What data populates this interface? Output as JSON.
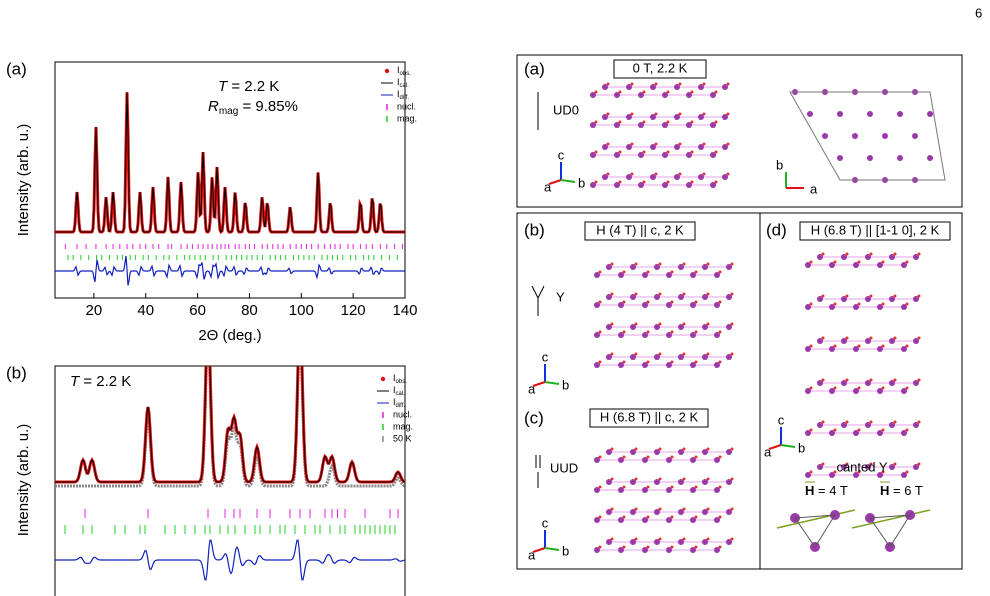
{
  "page_number": "6",
  "panel_a": {
    "label": "(a)",
    "temp_symbol": "T",
    "temp_value": " = 2.2 K",
    "r_symbol": "R",
    "r_sub": "mag",
    "r_value": " = 9.85%",
    "y_label": "Intensity (arb. u.)",
    "x_label": "2Θ (deg.)",
    "xlim": [
      5,
      140
    ],
    "xticks": [
      20,
      40,
      60,
      80,
      100,
      120,
      140
    ],
    "legend": [
      {
        "symbol": "I",
        "sub": "obs."
      },
      {
        "symbol": "I",
        "sub": "cal."
      },
      {
        "symbol": "I",
        "sub": "diff."
      },
      {
        "text": "nucl."
      },
      {
        "text": "mag."
      }
    ],
    "peaks": [
      [
        13.5,
        40
      ],
      [
        20.8,
        105
      ],
      [
        24.7,
        35
      ],
      [
        27.4,
        40
      ],
      [
        32.8,
        140
      ],
      [
        37.8,
        40
      ],
      [
        42.8,
        45
      ],
      [
        48.6,
        55
      ],
      [
        53.6,
        50
      ],
      [
        60.2,
        60
      ],
      [
        62.1,
        80
      ],
      [
        65.6,
        55
      ],
      [
        67.5,
        65
      ],
      [
        70.6,
        45
      ],
      [
        74.5,
        40
      ],
      [
        78.4,
        30
      ],
      [
        84.9,
        35
      ],
      [
        86.9,
        30
      ],
      [
        95.7,
        25
      ],
      [
        106.5,
        60
      ],
      [
        111.2,
        30
      ],
      [
        122.8,
        30
      ],
      [
        127.4,
        35
      ],
      [
        130.5,
        30
      ]
    ],
    "nucl_ticks": [
      9,
      13.5,
      17,
      20.8,
      24.7,
      27.4,
      30,
      32.8,
      35,
      37.8,
      40,
      42.8,
      45,
      48.6,
      50,
      53.6,
      56,
      58,
      60.2,
      62.1,
      64,
      65.6,
      67.5,
      69,
      70.6,
      72,
      74.5,
      76,
      78.4,
      80,
      82,
      84.9,
      86.9,
      89,
      91,
      93,
      95.7,
      98,
      100,
      102,
      104,
      106.5,
      109,
      111.2,
      113,
      115,
      118,
      120,
      122.8,
      125,
      127.4,
      130.5,
      133,
      136,
      139
    ],
    "mag_ticks": [
      10,
      12,
      15,
      18,
      21,
      23,
      26,
      29,
      31,
      34,
      36,
      39,
      41,
      44,
      47,
      49,
      52,
      55,
      57,
      59,
      61,
      63,
      66,
      68,
      71,
      73,
      75,
      77,
      79,
      81,
      83,
      85,
      88,
      90,
      92,
      94,
      97,
      99,
      101,
      103,
      105,
      108,
      110,
      112,
      114,
      116,
      119,
      121,
      124,
      126,
      128,
      131,
      134,
      137
    ]
  },
  "panel_b": {
    "label": "(b)",
    "temp_symbol": "T",
    "temp_value": " = 2.2 K",
    "y_label": "Intensity (arb. u.)",
    "xlim": [
      0,
      70
    ],
    "legend": [
      {
        "symbol": "I",
        "sub": "obs."
      },
      {
        "symbol": "I",
        "sub": "cal."
      },
      {
        "symbol": "I",
        "sub": "diff."
      },
      {
        "text": "nucl."
      },
      {
        "text": "mag."
      },
      {
        "text": "50 K"
      }
    ],
    "peaks": [
      [
        5.6,
        22
      ],
      [
        7.4,
        22
      ],
      [
        18.6,
        75
      ],
      [
        30.6,
        160
      ],
      [
        34.6,
        50
      ],
      [
        35.8,
        60
      ],
      [
        37,
        45
      ],
      [
        40.4,
        35
      ],
      [
        49,
        160
      ],
      [
        54,
        25
      ],
      [
        55.4,
        25
      ],
      [
        59.4,
        20
      ],
      [
        68.6,
        10
      ]
    ],
    "peaks_50k": [
      [
        18.6,
        70
      ],
      [
        30.6,
        150
      ],
      [
        34.6,
        45
      ],
      [
        35.8,
        55
      ],
      [
        37,
        40
      ],
      [
        40.4,
        30
      ],
      [
        49,
        150
      ],
      [
        55.4,
        20
      ],
      [
        68.6,
        8
      ]
    ],
    "nucl_ticks": [
      6,
      18.6,
      30.6,
      34,
      35.8,
      37,
      40.4,
      43,
      47,
      49,
      51,
      54,
      55.4,
      56.5,
      58,
      62,
      67,
      68.6
    ],
    "mag_ticks": [
      2,
      5.6,
      7.4,
      12,
      14,
      17,
      18,
      22,
      24,
      26,
      28,
      30,
      31,
      33,
      34.6,
      36,
      38,
      40,
      41,
      43,
      45,
      46,
      48,
      50,
      52,
      53,
      55,
      57,
      58,
      60,
      61,
      62,
      63,
      64,
      65,
      66,
      67,
      68
    ]
  },
  "structures": {
    "a": {
      "label": "(a)",
      "title": "0 T, 2.2 K",
      "state": "UD0",
      "axes1": [
        "c",
        "a",
        "b"
      ],
      "axes2": [
        "b",
        "a"
      ]
    },
    "b": {
      "label": "(b)",
      "title": "H (4 T) || c, 2 K",
      "state": "Y",
      "axes": [
        "c",
        "a",
        "b"
      ]
    },
    "c": {
      "label": "(c)",
      "title": "H (6.8 T) || c, 2 K",
      "state": "UUD",
      "axes": [
        "c",
        "a",
        "b"
      ]
    },
    "d": {
      "label": "(d)",
      "title": "H (6.8 T) || [1-1 0], 2 K",
      "axes": [
        "c",
        "a",
        "b"
      ],
      "state": "canted Y",
      "field_1": {
        "symbol": "H",
        "value": " = 4 T"
      },
      "field_2": {
        "symbol": "H",
        "value": " = 6 T"
      }
    }
  }
}
